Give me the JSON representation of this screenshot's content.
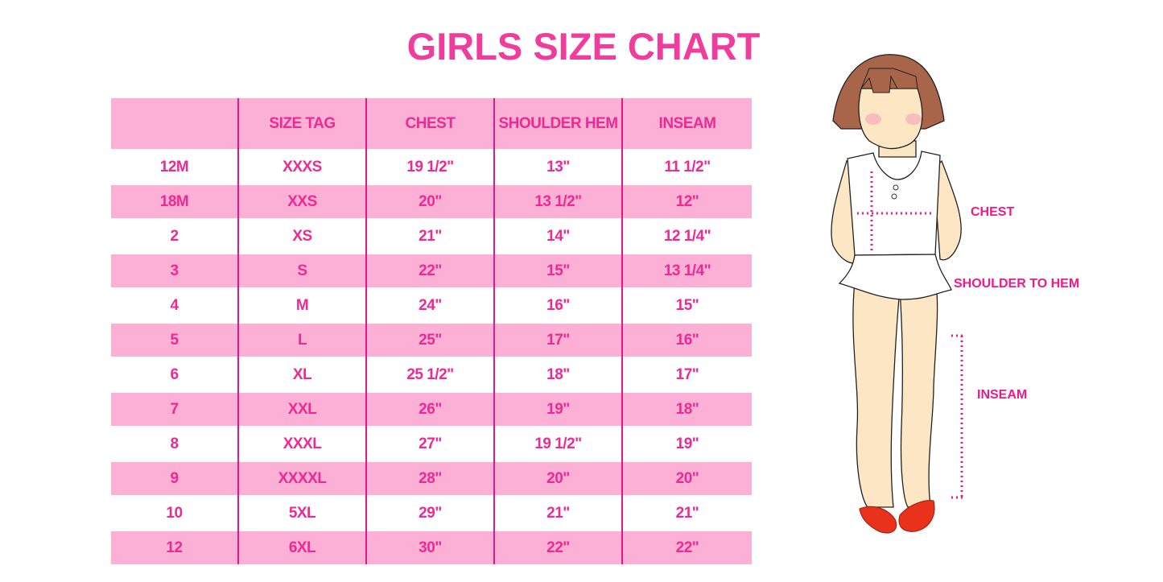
{
  "title": "GIRLS SIZE CHART",
  "table": {
    "headers": [
      "",
      "SIZE TAG",
      "CHEST",
      "SHOULDER HEM",
      "INSEAM"
    ],
    "rows": [
      [
        "12M",
        "XXXS",
        "19 1/2\"",
        "13\"",
        "11 1/2\""
      ],
      [
        "18M",
        "XXS",
        "20\"",
        "13 1/2\"",
        "12\""
      ],
      [
        "2",
        "XS",
        "21\"",
        "14\"",
        "12 1/4\""
      ],
      [
        "3",
        "S",
        "22\"",
        "15\"",
        "13 1/4\""
      ],
      [
        "4",
        "M",
        "24\"",
        "16\"",
        "15\""
      ],
      [
        "5",
        "L",
        "25\"",
        "17\"",
        "16\""
      ],
      [
        "6",
        "XL",
        "25 1/2\"",
        "18\"",
        "17\""
      ],
      [
        "7",
        "XXL",
        "26\"",
        "19\"",
        "18\""
      ],
      [
        "8",
        "XXXL",
        "27\"",
        "19 1/2\"",
        "19\""
      ],
      [
        "9",
        "XXXXL",
        "28\"",
        "20\"",
        "20\""
      ],
      [
        "10",
        "5XL",
        "29\"",
        "21\"",
        "21\""
      ],
      [
        "12",
        "6XL",
        "30\"",
        "22\"",
        "22\""
      ]
    ]
  },
  "illustration": {
    "labels": {
      "chest": "CHEST",
      "shoulder_to_hem": "SHOULDER TO HEM",
      "inseam": "INSEAM"
    }
  },
  "colors": {
    "accent": "#ee2a92",
    "row_pink": "#fcb0d5",
    "divider": "#e0188a"
  }
}
